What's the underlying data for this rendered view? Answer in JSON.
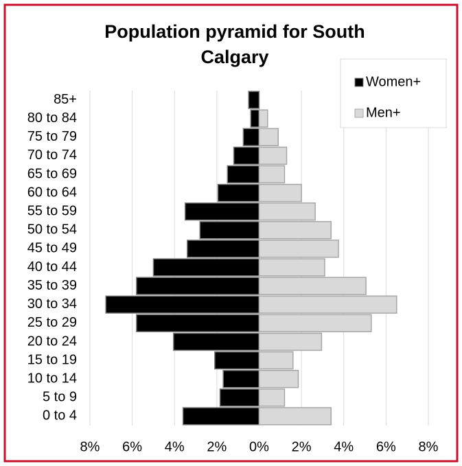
{
  "chart_data": {
    "type": "pyramid",
    "title": "Population pyramid for South Calgary",
    "categories": [
      "85+",
      "80 to 84",
      "75 to 79",
      "70 to 74",
      "65 to 69",
      "60 to 64",
      "55 to 59",
      "50 to 54",
      "45 to 49",
      "40 to 44",
      "35 to 39",
      "30 to 34",
      "25 to 29",
      "20 to 24",
      "15 to 19",
      "10 to 14",
      "5 to 9",
      "0 to 4"
    ],
    "series": [
      {
        "name": "Women+",
        "color": "#000000",
        "values": [
          -0.5,
          -0.4,
          -0.75,
          -1.2,
          -1.5,
          -1.95,
          -3.5,
          -2.8,
          -3.4,
          -5.0,
          -5.8,
          -7.25,
          -5.8,
          -4.05,
          -2.1,
          -1.7,
          -1.85,
          -3.6
        ]
      },
      {
        "name": "Men+",
        "color": "#d9d9d9",
        "values": [
          0,
          0.4,
          0.9,
          1.3,
          1.2,
          2.0,
          2.65,
          3.4,
          3.75,
          3.1,
          5.05,
          6.5,
          5.3,
          2.95,
          1.6,
          1.85,
          1.2,
          3.4
        ]
      }
    ],
    "xlim": [
      -8,
      8
    ],
    "xticks": [
      {
        "value": -8,
        "label": "8%"
      },
      {
        "value": -6,
        "label": "6%"
      },
      {
        "value": -4,
        "label": "4%"
      },
      {
        "value": -2,
        "label": "2%"
      },
      {
        "value": 0,
        "label": "0%"
      },
      {
        "value": 2,
        "label": "2%"
      },
      {
        "value": 4,
        "label": "4%"
      },
      {
        "value": 6,
        "label": "6%"
      },
      {
        "value": 8,
        "label": "8%"
      }
    ],
    "grid": true,
    "legend": "top-right"
  }
}
